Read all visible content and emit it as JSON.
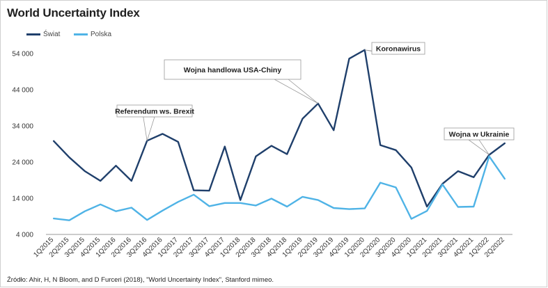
{
  "title": "World Uncertainty Index",
  "source_note": "Źródło: Ahir, H, N Bloom, and D Furceri (2018), \"World Uncertainty Index\", Stanford mimeo.",
  "chart_data": {
    "type": "line",
    "title": "World Uncertainty Index",
    "xlabel": "",
    "ylabel": "",
    "ylim": [
      4000,
      58000
    ],
    "yticks": [
      "4 000",
      "14 000",
      "24 000",
      "34 000",
      "44 000",
      "54 000"
    ],
    "ytick_values": [
      4000,
      14000,
      24000,
      34000,
      44000,
      54000
    ],
    "grid": false,
    "legend_position": "top-left",
    "categories": [
      "1Q2015",
      "2Q2015",
      "3Q2015",
      "4Q2015",
      "1Q2016",
      "2Q2016",
      "3Q2016",
      "4Q2016",
      "1Q2017",
      "2Q2017",
      "3Q2017",
      "4Q2017",
      "1Q2018",
      "2Q2018",
      "3Q2018",
      "4Q2018",
      "1Q2019",
      "2Q2019",
      "3Q2019",
      "4Q2019",
      "1Q2020",
      "2Q2020",
      "3Q2020",
      "4Q2020",
      "1Q2021",
      "2Q2021",
      "3Q2021",
      "4Q2021",
      "1Q2022",
      "2Q2022"
    ],
    "series": [
      {
        "name": "Świat",
        "color": "#1f3f6b",
        "values": [
          29800,
          25300,
          21500,
          18800,
          23000,
          18800,
          29900,
          31800,
          29600,
          16200,
          16100,
          28300,
          13500,
          25600,
          28500,
          26200,
          36000,
          40200,
          32800,
          52600,
          55000,
          28700,
          27300,
          22500,
          11700,
          18000,
          21500,
          19800,
          26000,
          29200
        ]
      },
      {
        "name": "Polska",
        "color": "#4fb3e6",
        "values": [
          8400,
          7900,
          10400,
          12300,
          10400,
          11400,
          8000,
          10600,
          13000,
          15000,
          11800,
          12700,
          12700,
          12000,
          13900,
          11700,
          14400,
          13500,
          11300,
          11000,
          11200,
          18300,
          17000,
          8300,
          10500,
          17800,
          11600,
          11700,
          25600,
          19400
        ]
      }
    ],
    "annotations": [
      {
        "text": "Referendum ws. Brexit",
        "category": "3Q2016"
      },
      {
        "text": "Wojna handlowa USA-Chiny",
        "category": "2Q2019"
      },
      {
        "text": "Koronawirus",
        "category": "1Q2020"
      },
      {
        "text": "Wojna w Ukrainie",
        "category": "1Q2022"
      }
    ]
  }
}
